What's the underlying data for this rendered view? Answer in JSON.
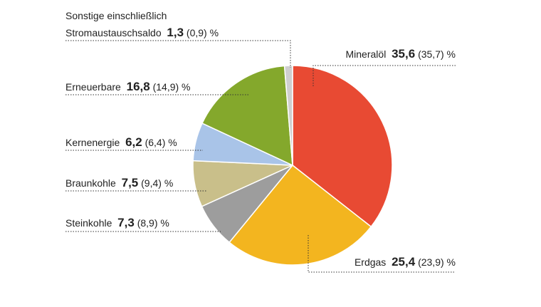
{
  "chart_data": {
    "type": "pie",
    "unit": "%",
    "slices": [
      {
        "label": "Mineralöl",
        "value": 35.6,
        "prev": "35,7",
        "value_text": "35,6",
        "color": "#e84a33"
      },
      {
        "label": "Erdgas",
        "value": 25.4,
        "prev": "23,9",
        "value_text": "25,4",
        "color": "#f3b51f"
      },
      {
        "label": "Steinkohle",
        "value": 7.3,
        "prev": "8,9",
        "value_text": "7,3",
        "color": "#9d9d9d"
      },
      {
        "label": "Braunkohle",
        "value": 7.5,
        "prev": "9,4",
        "value_text": "7,5",
        "color": "#c9bf8a"
      },
      {
        "label": "Kernenergie",
        "value": 6.2,
        "prev": "6,4",
        "value_text": "6,2",
        "color": "#a9c4e8"
      },
      {
        "label": "Erneuerbare",
        "value": 16.8,
        "prev": "14,9",
        "value_text": "16,8",
        "color": "#84a82c"
      },
      {
        "label": "Sonstige einschließlich",
        "label2": "Stromaustauschsaldo",
        "value": 1.3,
        "prev": "0,9",
        "value_text": "1,3",
        "color": "#cfcfcf"
      }
    ]
  }
}
